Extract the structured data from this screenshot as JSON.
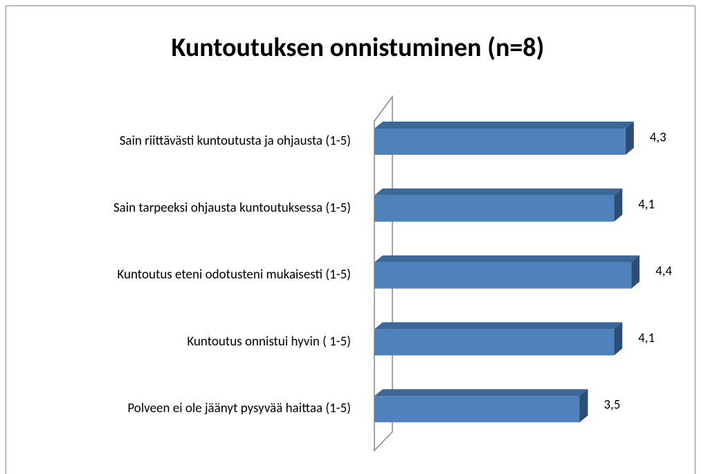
{
  "chart_data": {
    "type": "bar3d_horizontal",
    "title": "Kuntoutuksen onnistuminen (n=8)",
    "categories": [
      "Sain riittävästi kuntoutusta ja ohjausta (1-5)",
      "Sain tarpeeksi ohjausta kuntoutuksessa (1-5)",
      "Kuntoutus eteni odotusteni mukaisesti (1-5)",
      "Kuntoutus onnistui hyvin ( 1-5)",
      "Polveen ei ole jäänyt pysyvää haittaa (1-5)"
    ],
    "values": [
      4.3,
      4.1,
      4.4,
      4.1,
      3.5
    ],
    "value_labels": [
      "4,3",
      "4,1",
      "4,4",
      "4,1",
      "3,5"
    ],
    "color": "#4f81bd"
  }
}
